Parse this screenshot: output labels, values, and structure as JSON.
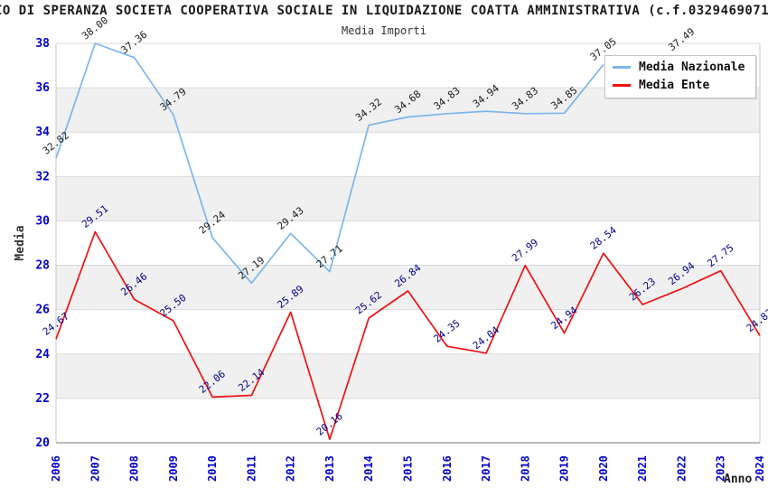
{
  "header": {
    "title": "IO DI SPERANZA SOCIETA COOPERATIVA SOCIALE IN LIQUIDAZIONE COATTA AMMINISTRATIVA (c.f.0329469071",
    "subtitle": "Media Importi"
  },
  "legend": {
    "items": [
      {
        "label": "Media Nazionale",
        "color": "#7cb5ec"
      },
      {
        "label": "Media Ente",
        "color": "#ee1111"
      }
    ]
  },
  "chart_data": {
    "type": "line",
    "title": "Media Importi",
    "xlabel": "Anno",
    "ylabel": "Media",
    "categories": [
      "2006",
      "2007",
      "2008",
      "2009",
      "2010",
      "2011",
      "2012",
      "2013",
      "2014",
      "2015",
      "2016",
      "2017",
      "2018",
      "2019",
      "2020",
      "2021",
      "2022",
      "2023",
      "2024"
    ],
    "series": [
      {
        "name": "Media Nazionale",
        "color": "#7cb5ec",
        "label_color": "#1a1a1a",
        "values": [
          32.82,
          38.0,
          37.36,
          34.79,
          29.24,
          27.19,
          29.43,
          27.71,
          34.32,
          34.68,
          34.83,
          34.94,
          34.83,
          34.85,
          37.05,
          null,
          37.49,
          null,
          null
        ]
      },
      {
        "name": "Media Ente",
        "color": "#ee1111",
        "label_color": "#00008b",
        "values": [
          24.67,
          29.51,
          26.46,
          25.5,
          22.06,
          22.14,
          25.89,
          20.16,
          25.62,
          26.84,
          24.35,
          24.04,
          27.99,
          24.94,
          28.54,
          26.23,
          26.94,
          27.75,
          24.83
        ]
      }
    ],
    "ylim": [
      20,
      38
    ],
    "ytick_step": 2,
    "tick_label_color": "#0000cc",
    "band_fill_color": "#f0f0f0",
    "grid": "horizontal, alternating shaded bands",
    "legend_position": "top-right",
    "data_labels": "each point labelled with value (2 decimals), rotated"
  }
}
